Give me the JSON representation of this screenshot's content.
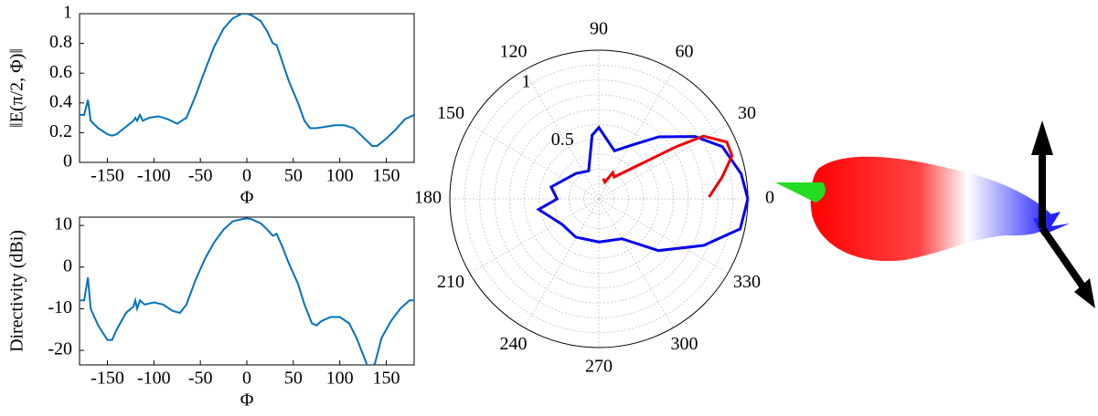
{
  "chart_data": [
    {
      "type": "line",
      "ylabel": "‖E(π/2, Φ)‖",
      "xlabel": "Φ",
      "xlim": [
        -180,
        180
      ],
      "xticks": [
        -150,
        -100,
        -50,
        0,
        50,
        100,
        150
      ],
      "ylim": [
        0,
        1
      ],
      "yticks": [
        0,
        0.2,
        0.4,
        0.6,
        0.8,
        1
      ],
      "x": [
        -180,
        -175,
        -171,
        -168,
        -160,
        -150,
        -145,
        -140,
        -130,
        -122,
        -120,
        -118,
        -115,
        -112,
        -105,
        -95,
        -85,
        -75,
        -65,
        -55,
        -45,
        -35,
        -25,
        -15,
        -5,
        0,
        5,
        15,
        22,
        28,
        32,
        38,
        45,
        55,
        62,
        68,
        75,
        85,
        95,
        105,
        115,
        125,
        135,
        140,
        150,
        160,
        170,
        180
      ],
      "series": [
        {
          "color": "#0072bd",
          "values": [
            0.32,
            0.32,
            0.42,
            0.28,
            0.23,
            0.19,
            0.18,
            0.19,
            0.24,
            0.28,
            0.3,
            0.28,
            0.32,
            0.28,
            0.3,
            0.31,
            0.29,
            0.26,
            0.3,
            0.45,
            0.62,
            0.78,
            0.9,
            0.97,
            1.0,
            1.0,
            0.99,
            0.95,
            0.88,
            0.8,
            0.79,
            0.68,
            0.55,
            0.4,
            0.28,
            0.23,
            0.23,
            0.24,
            0.25,
            0.25,
            0.23,
            0.17,
            0.11,
            0.11,
            0.16,
            0.22,
            0.29,
            0.32
          ]
        }
      ]
    },
    {
      "type": "line",
      "ylabel": "Directivity (dBi)",
      "xlabel": "Φ",
      "xlim": [
        -180,
        180
      ],
      "xticks": [
        -150,
        -100,
        -50,
        0,
        50,
        100,
        150
      ],
      "ylim": [
        -23.5,
        12
      ],
      "yticks": [
        -20,
        -10,
        0,
        10
      ],
      "x": [
        -180,
        -175,
        -171,
        -168,
        -160,
        -150,
        -145,
        -140,
        -130,
        -122,
        -120,
        -118,
        -115,
        -110,
        -100,
        -90,
        -80,
        -72,
        -65,
        -55,
        -45,
        -35,
        -25,
        -15,
        -5,
        0,
        5,
        15,
        22,
        28,
        32,
        38,
        45,
        55,
        62,
        70,
        75,
        80,
        90,
        100,
        110,
        118,
        125,
        132,
        138,
        145,
        155,
        165,
        175,
        180
      ],
      "series": [
        {
          "color": "#0072bd",
          "values": [
            -8,
            -8,
            -2.5,
            -10,
            -14,
            -17.5,
            -17.5,
            -15,
            -11,
            -9.5,
            -8,
            -10,
            -8,
            -9,
            -8.5,
            -9,
            -10.5,
            -11,
            -9,
            -3,
            2,
            6,
            9,
            11,
            11.5,
            11.7,
            11.5,
            10.5,
            9,
            7.5,
            8,
            5,
            1,
            -4,
            -9,
            -13.5,
            -14,
            -13,
            -12,
            -12,
            -13.5,
            -17,
            -21,
            -25,
            -23,
            -17,
            -13,
            -10,
            -8,
            -8
          ]
        }
      ]
    },
    {
      "type": "polar",
      "rlim": [
        0,
        1
      ],
      "rticks": [
        0.5,
        1
      ],
      "rgrid": [
        0.1,
        0.2,
        0.3,
        0.4,
        0.6,
        0.7,
        0.8,
        0.9
      ],
      "thetaticks": [
        0,
        30,
        60,
        90,
        120,
        150,
        180,
        210,
        240,
        270,
        300,
        330
      ],
      "series": [
        {
          "color": "#0000ee",
          "theta": [
            0,
            10,
            23,
            33,
            46,
            59,
            72,
            90,
            96,
            110,
            132,
            166,
            180,
            190,
            215,
            239,
            270,
            300,
            319,
            336,
            348,
            360
          ],
          "values": [
            1.0,
            0.97,
            0.9,
            0.77,
            0.58,
            0.42,
            0.34,
            0.48,
            0.43,
            0.2,
            0.23,
            0.33,
            0.28,
            0.41,
            0.3,
            0.3,
            0.29,
            0.31,
            0.53,
            0.77,
            0.97,
            1.0
          ]
        },
        {
          "color": "#ee0000",
          "theta": [
            1,
            10,
            18,
            24,
            31,
            34,
            40,
            55,
            62,
            70,
            78
          ],
          "values": [
            0.74,
            0.84,
            0.94,
            0.94,
            0.82,
            0.63,
            0.36,
            0.18,
            0.2,
            0.12,
            0.14
          ]
        }
      ]
    }
  ]
}
